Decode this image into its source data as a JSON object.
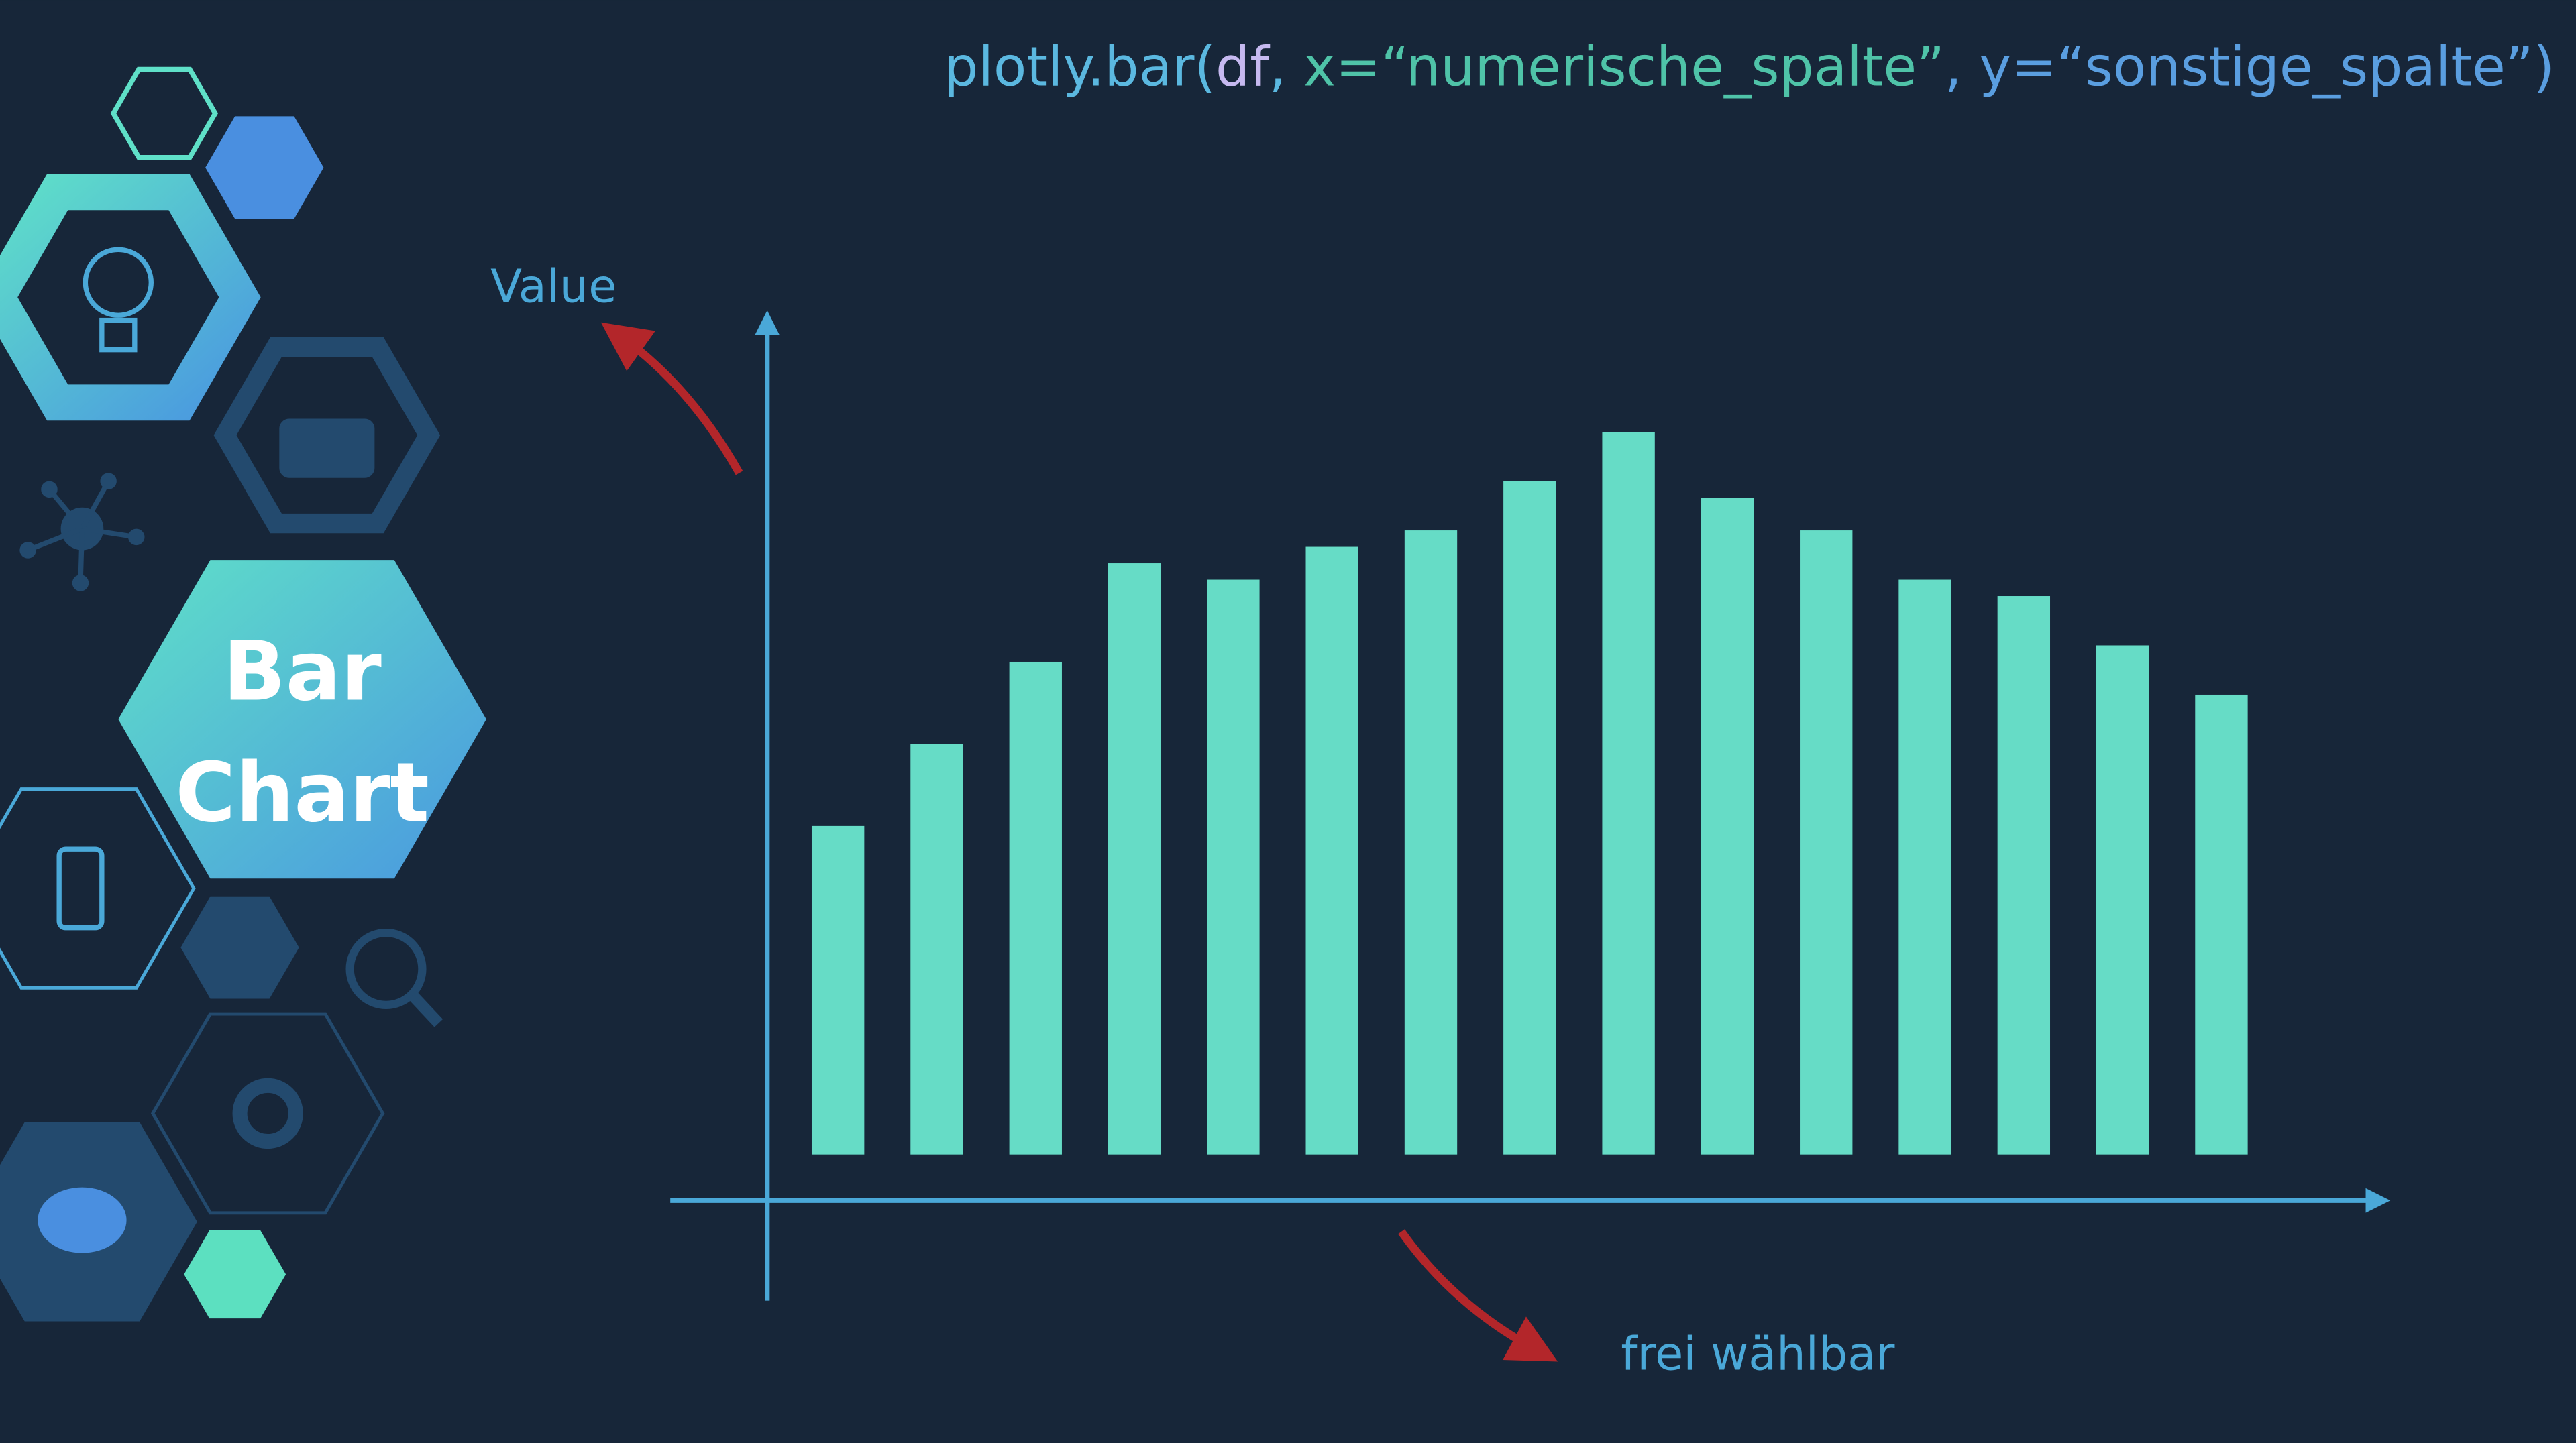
{
  "code": [
    {
      "text": "plotly.bar(",
      "color": "#5bb8e0"
    },
    {
      "text": "df",
      "color": "#c6b9f0"
    },
    {
      "text": ", ",
      "color": "#5bb8e0"
    },
    {
      "text": "x=“numerische_spalte”",
      "color": "#4fc3a8"
    },
    {
      "text": ", y=“sonstige_spalte”)",
      "color": "#5a9ee0"
    }
  ],
  "badge": [
    "Bar",
    "Chart"
  ],
  "chart_data": {
    "type": "bar",
    "y_label": "Value",
    "x_label": "frei wählbar",
    "categories": [
      null,
      null,
      null,
      null,
      null,
      null,
      null,
      null,
      null,
      null,
      null,
      null,
      null,
      null,
      null
    ],
    "values": [
      20,
      25,
      30,
      36,
      35,
      37,
      38,
      41,
      44,
      40,
      38,
      35,
      34,
      31,
      28
    ],
    "color": "#66dcc6",
    "ylim": [
      0,
      50
    ],
    "yticks": [],
    "grid": false
  }
}
